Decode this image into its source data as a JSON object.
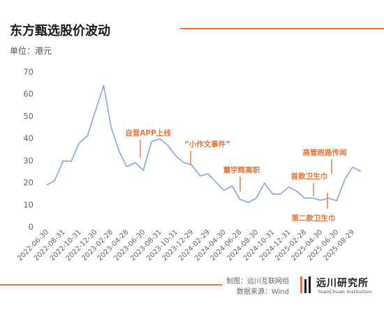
{
  "title": "东方甄选股价波动",
  "unit_label": "单位：港元",
  "footer": {
    "maker": "制图：远川互联网组",
    "source": "数据来源：Wind"
  },
  "logo": {
    "name_cn": "远川研究所",
    "name_en": "YuanChuan Institution",
    "brand_color": "#e8743b"
  },
  "colors": {
    "accent": "#e8743b",
    "line": "#8eaadb",
    "annotation_text": "#e8743b",
    "arrow": "#e8743b",
    "axis_text": "#666666"
  },
  "chart_data": {
    "type": "line",
    "title": "东方甄选股价波动",
    "ylabel": "单位：港元",
    "ylim": [
      0,
      70
    ],
    "yticks": [
      0,
      10,
      20,
      30,
      40,
      50,
      60,
      70
    ],
    "grid": false,
    "xticks": [
      "2022-06-30",
      "2022-08-31",
      "2022-10-31",
      "2022-12-30",
      "2023-02-28",
      "2023-04-28",
      "2023-06-30",
      "2023-08-31",
      "2023-10-31",
      "2023-12-29",
      "2024-02-29",
      "2024-04-30",
      "2024-06-28",
      "2024-08-30",
      "2024-10-31",
      "2024-12-31",
      "2025-02-28",
      "2025-04-30",
      "2025-06-30",
      "2025-08-29"
    ],
    "series": [
      {
        "x": [
          "2022-06-30",
          "2022-07-29",
          "2022-08-31",
          "2022-09-30",
          "2022-10-31",
          "2022-11-30",
          "2022-12-30",
          "2023-01-31",
          "2023-02-28",
          "2023-03-31",
          "2023-04-28",
          "2023-05-31",
          "2023-06-30",
          "2023-07-31",
          "2023-08-31",
          "2023-09-29",
          "2023-10-31",
          "2023-11-30",
          "2023-12-29",
          "2024-01-31",
          "2024-02-29",
          "2024-03-28",
          "2024-04-30",
          "2024-05-31",
          "2024-06-28",
          "2024-07-31",
          "2024-08-30",
          "2024-09-30",
          "2024-10-31",
          "2024-11-29",
          "2024-12-31",
          "2025-01-31",
          "2025-02-28",
          "2025-03-31",
          "2025-04-30",
          "2025-05-30",
          "2025-06-30",
          "2025-07-31",
          "2025-08-29",
          "2025-09-30"
        ],
        "values": [
          18.9,
          20.8,
          29.8,
          29.5,
          38.0,
          41.0,
          52.0,
          63.8,
          45.0,
          34.0,
          27.2,
          29.0,
          25.5,
          38.5,
          39.8,
          37.0,
          32.0,
          29.0,
          28.0,
          23.0,
          24.0,
          20.5,
          16.5,
          18.5,
          12.5,
          11.0,
          13.0,
          19.8,
          14.8,
          14.8,
          18.0,
          16.0,
          13.0,
          13.0,
          12.0,
          13.0,
          11.8,
          21.5,
          27.0,
          25.0
        ]
      }
    ],
    "annotations": [
      {
        "text": "自营APP上线",
        "date": "2023-06-30"
      },
      {
        "text": "“小作文事件”",
        "date": "2023-12-29"
      },
      {
        "text": "董宇辉离职",
        "date": "2024-07-31"
      },
      {
        "text": "首款卫生巾",
        "date": "2025-05-30"
      },
      {
        "text": "第二款卫生巾",
        "date": "2025-06-30"
      },
      {
        "text": "高管跑路传闻",
        "date": "2025-07-31"
      }
    ]
  }
}
